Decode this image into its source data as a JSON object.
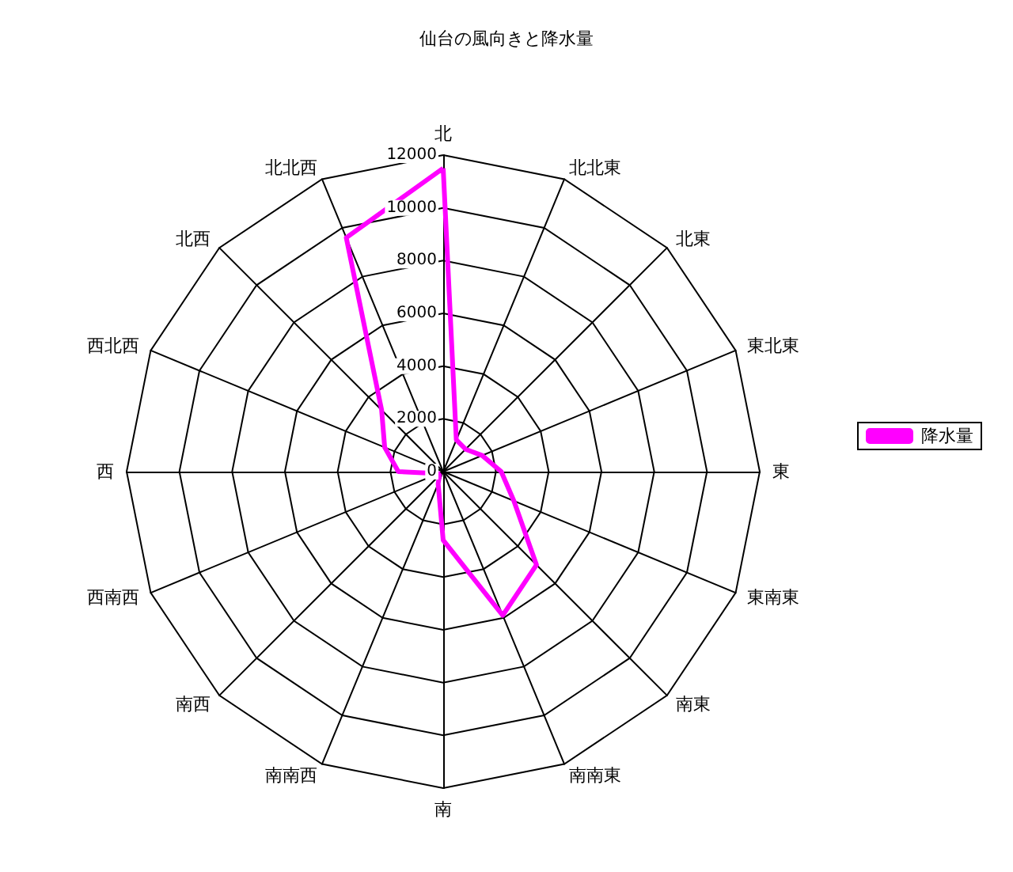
{
  "chart_data": {
    "type": "radar",
    "title": "仙台の風向きと降水量",
    "categories": [
      "北",
      "北北東",
      "北東",
      "東北東",
      "東",
      "東南東",
      "南東",
      "南南東",
      "南",
      "南南西",
      "南西",
      "西南西",
      "西",
      "西北西",
      "北西",
      "北北西"
    ],
    "series": [
      {
        "name": "降水量",
        "color": "#ff00ff",
        "values": [
          11500,
          1300,
          1200,
          1600,
          2200,
          2900,
          5000,
          5900,
          2600,
          500,
          200,
          200,
          1700,
          2400,
          3300,
          9600
        ]
      }
    ],
    "ylim": [
      0,
      12000
    ],
    "yticks": [
      0,
      2000,
      4000,
      6000,
      8000,
      10000,
      12000
    ],
    "legend": "right",
    "marker": "none",
    "line_style": "solid"
  }
}
